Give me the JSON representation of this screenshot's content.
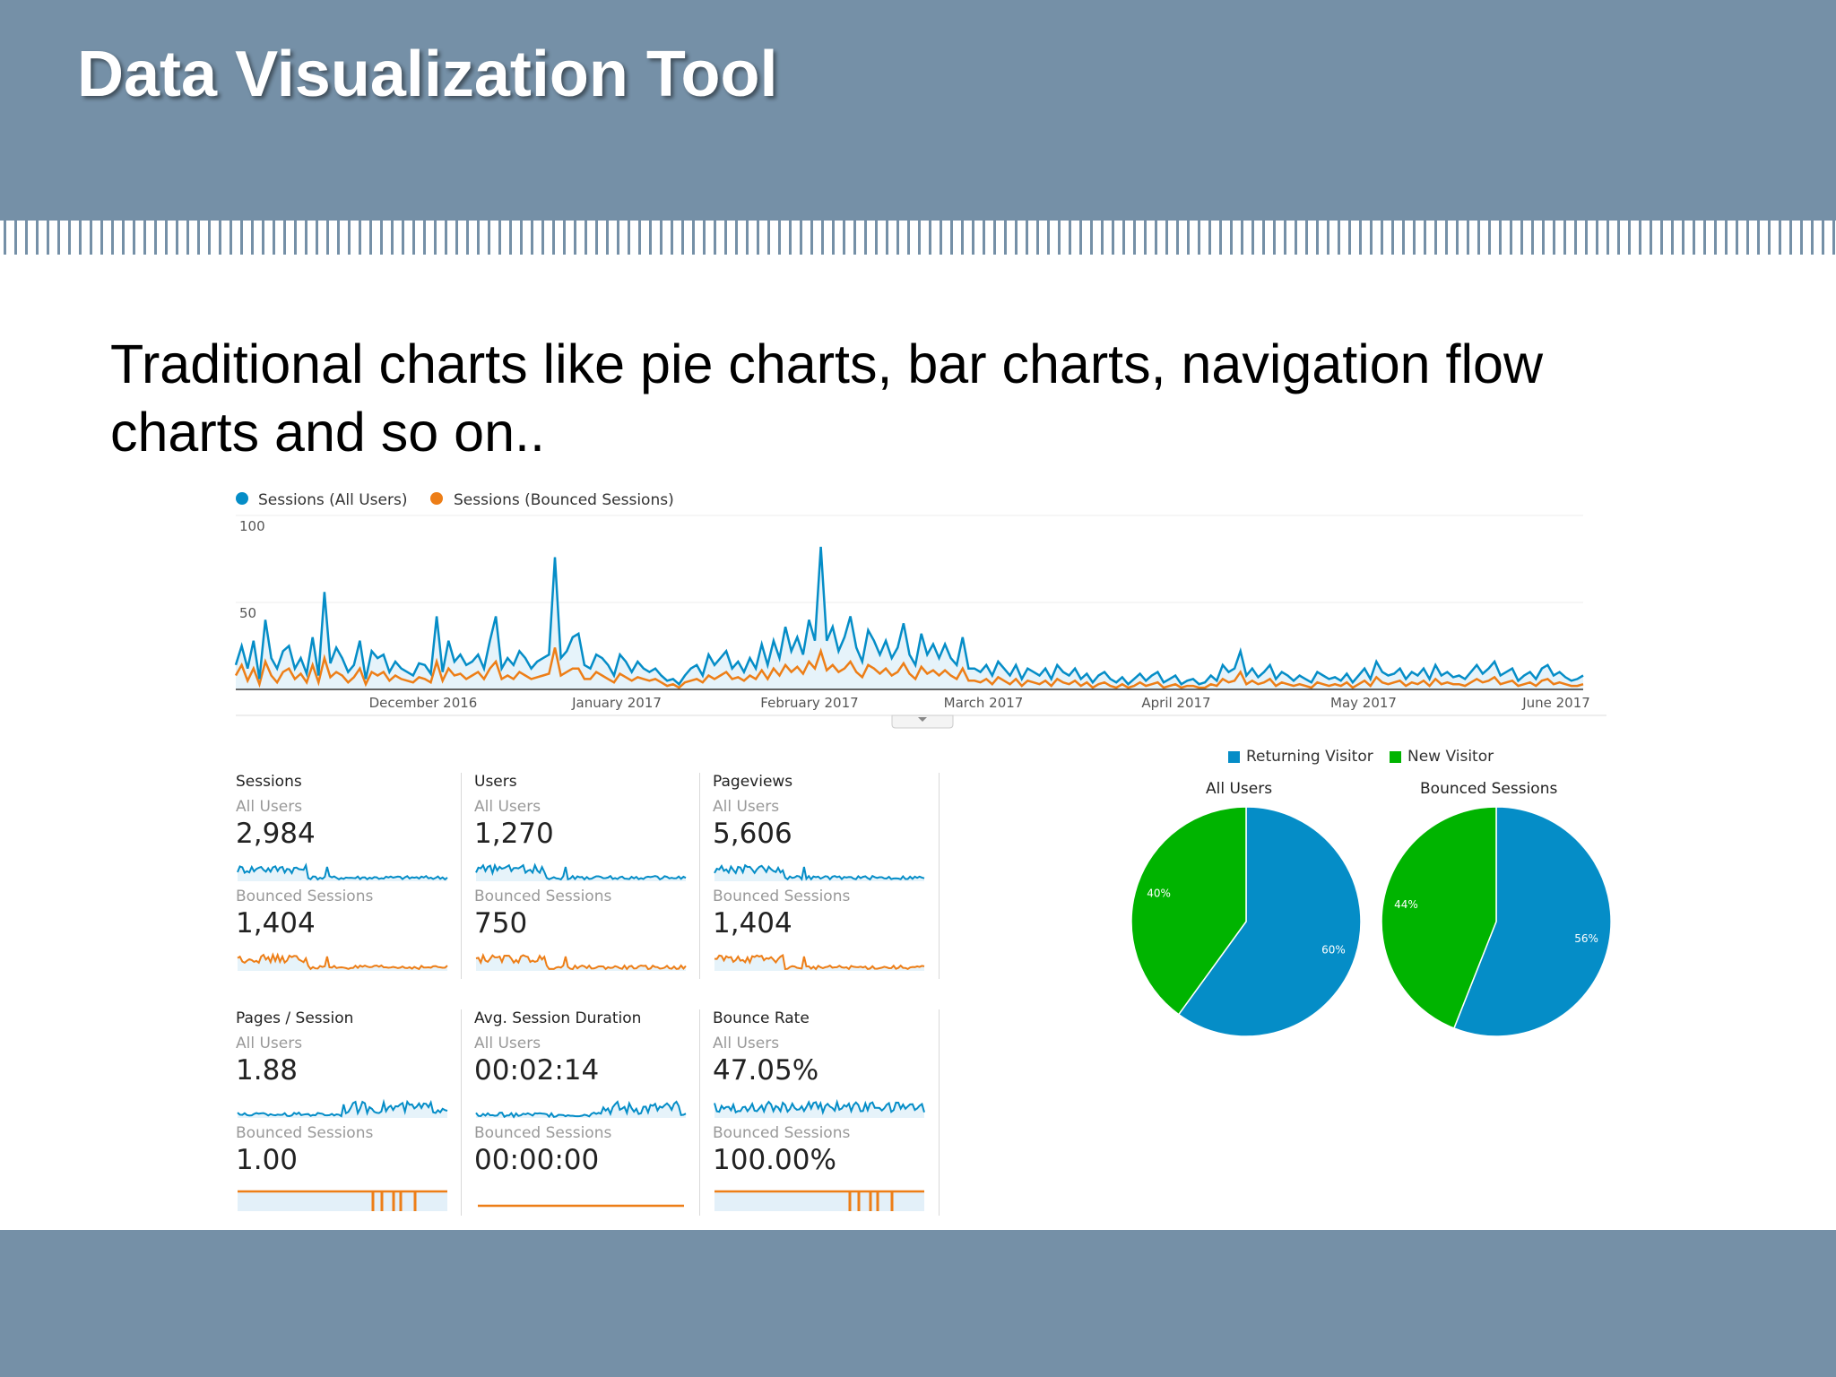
{
  "slide": {
    "title": "Data Visualization Tool",
    "subtitle": "Traditional charts like pie charts, bar charts, navigation flow charts and so on.."
  },
  "colors": {
    "header": "#7590a7",
    "blue": "#058dc7",
    "orange": "#ed7e17",
    "green": "#00b400",
    "pie_blue": "#058dc7"
  },
  "chart_data": [
    {
      "type": "line",
      "legend": [
        "Sessions (All Users)",
        "Sessions (Bounced Sessions)"
      ],
      "legend_placement": "top-left",
      "yticks": [
        "100",
        "50"
      ],
      "ylim": [
        0,
        100
      ],
      "xtick_labels": [
        "December 2016",
        "January 2017",
        "February 2017",
        "March 2017",
        "April 2017",
        "May 2017",
        "June 2017"
      ],
      "series": [
        {
          "name": "Sessions (All Users)",
          "color": "#058dc7",
          "values": [
            14,
            25,
            12,
            28,
            6,
            40,
            18,
            12,
            22,
            25,
            12,
            18,
            9,
            30,
            8,
            56,
            15,
            24,
            18,
            10,
            14,
            28,
            6,
            22,
            18,
            20,
            10,
            16,
            12,
            10,
            8,
            15,
            14,
            9,
            42,
            10,
            28,
            16,
            20,
            14,
            16,
            20,
            12,
            28,
            42,
            12,
            18,
            14,
            22,
            18,
            12,
            16,
            18,
            20,
            76,
            18,
            22,
            30,
            32,
            14,
            12,
            20,
            18,
            14,
            8,
            20,
            16,
            10,
            16,
            12,
            10,
            12,
            8,
            5,
            6,
            3,
            8,
            12,
            14,
            8,
            20,
            14,
            18,
            22,
            12,
            16,
            10,
            18,
            12,
            26,
            14,
            28,
            18,
            36,
            22,
            30,
            20,
            40,
            28,
            82,
            28,
            36,
            22,
            30,
            42,
            24,
            16,
            34,
            28,
            20,
            28,
            18,
            24,
            38,
            20,
            14,
            32,
            20,
            26,
            18,
            26,
            18,
            14,
            30,
            12,
            12,
            10,
            14,
            8,
            16,
            12,
            8,
            14,
            6,
            12,
            10,
            8,
            12,
            6,
            14,
            10,
            8,
            12,
            6,
            9,
            4,
            8,
            10,
            6,
            4,
            7,
            3,
            6,
            9,
            5,
            8,
            10,
            4,
            6,
            8,
            3,
            5,
            6,
            3,
            4,
            8,
            5,
            14,
            10,
            12,
            22,
            8,
            12,
            7,
            10,
            14,
            6,
            10,
            8,
            5,
            8,
            6,
            4,
            10,
            8,
            6,
            7,
            5,
            9,
            4,
            8,
            12,
            6,
            16,
            10,
            8,
            9,
            12,
            6,
            10,
            8,
            12,
            6,
            14,
            8,
            10,
            7,
            8,
            6,
            10,
            14,
            9,
            12,
            16,
            8,
            10,
            12,
            5,
            8,
            10,
            6,
            12,
            14,
            8,
            10,
            7,
            5,
            6,
            8
          ]
        },
        {
          "name": "Sessions (Bounced Sessions)",
          "color": "#ed7e17",
          "values": [
            8,
            14,
            5,
            12,
            3,
            16,
            8,
            4,
            10,
            12,
            6,
            9,
            4,
            14,
            4,
            18,
            7,
            10,
            8,
            4,
            7,
            12,
            3,
            10,
            8,
            10,
            5,
            8,
            6,
            5,
            4,
            7,
            6,
            4,
            16,
            5,
            12,
            8,
            9,
            6,
            8,
            10,
            6,
            12,
            16,
            6,
            8,
            6,
            10,
            8,
            6,
            7,
            8,
            9,
            24,
            8,
            10,
            12,
            12,
            6,
            6,
            10,
            8,
            6,
            4,
            9,
            7,
            5,
            7,
            6,
            5,
            6,
            4,
            2,
            3,
            1,
            4,
            5,
            6,
            4,
            8,
            6,
            8,
            10,
            6,
            7,
            5,
            8,
            6,
            11,
            6,
            12,
            8,
            14,
            10,
            13,
            9,
            16,
            12,
            22,
            11,
            14,
            10,
            12,
            16,
            10,
            7,
            14,
            12,
            9,
            12,
            8,
            10,
            15,
            9,
            6,
            13,
            9,
            11,
            8,
            11,
            8,
            6,
            12,
            5,
            5,
            4,
            6,
            3,
            7,
            5,
            3,
            6,
            2,
            5,
            4,
            3,
            5,
            2,
            6,
            4,
            3,
            5,
            2,
            4,
            1,
            3,
            4,
            2,
            1,
            3,
            1,
            2,
            4,
            2,
            3,
            4,
            1,
            2,
            3,
            1,
            2,
            2,
            1,
            1,
            3,
            2,
            6,
            4,
            5,
            10,
            3,
            5,
            3,
            4,
            6,
            2,
            4,
            3,
            2,
            3,
            2,
            1,
            4,
            3,
            2,
            3,
            2,
            4,
            1,
            3,
            5,
            2,
            7,
            4,
            3,
            4,
            5,
            2,
            4,
            3,
            5,
            2,
            6,
            3,
            4,
            3,
            3,
            2,
            4,
            6,
            4,
            5,
            7,
            3,
            4,
            5,
            2,
            3,
            4,
            2,
            5,
            6,
            3,
            4,
            3,
            2,
            2,
            3
          ]
        }
      ]
    },
    {
      "type": "pie",
      "legend": [
        "Returning Visitor",
        "New Visitor"
      ],
      "charts": [
        {
          "title": "All Users",
          "slices": [
            {
              "label": "Returning Visitor",
              "value": 60,
              "text": "60%"
            },
            {
              "label": "New Visitor",
              "value": 40,
              "text": "40%"
            }
          ]
        },
        {
          "title": "Bounced Sessions",
          "slices": [
            {
              "label": "Returning Visitor",
              "value": 56,
              "text": "56%"
            },
            {
              "label": "New Visitor",
              "value": 44,
              "text": "44%"
            }
          ]
        }
      ]
    }
  ],
  "metrics": [
    {
      "title": "Sessions",
      "sub1": "All Users",
      "value1": "2,984",
      "sub2": "Bounced Sessions",
      "value2": "1,404",
      "spark": "a"
    },
    {
      "title": "Users",
      "sub1": "All Users",
      "value1": "1,270",
      "sub2": "Bounced Sessions",
      "value2": "750",
      "spark": "a"
    },
    {
      "title": "Pageviews",
      "sub1": "All Users",
      "value1": "5,606",
      "sub2": "Bounced Sessions",
      "value2": "1,404",
      "spark": "a"
    },
    {
      "title": "Pages / Session",
      "sub1": "All Users",
      "value1": "1.88",
      "sub2": "Bounced Sessions",
      "value2": "1.00",
      "spark": "b"
    },
    {
      "title": "Avg. Session Duration",
      "sub1": "All Users",
      "value1": "00:02:14",
      "sub2": "Bounced Sessions",
      "value2": "00:00:00",
      "spark": "c"
    },
    {
      "title": "Bounce Rate",
      "sub1": "All Users",
      "value1": "47.05%",
      "sub2": "Bounced Sessions",
      "value2": "100.00%",
      "spark": "b"
    }
  ]
}
